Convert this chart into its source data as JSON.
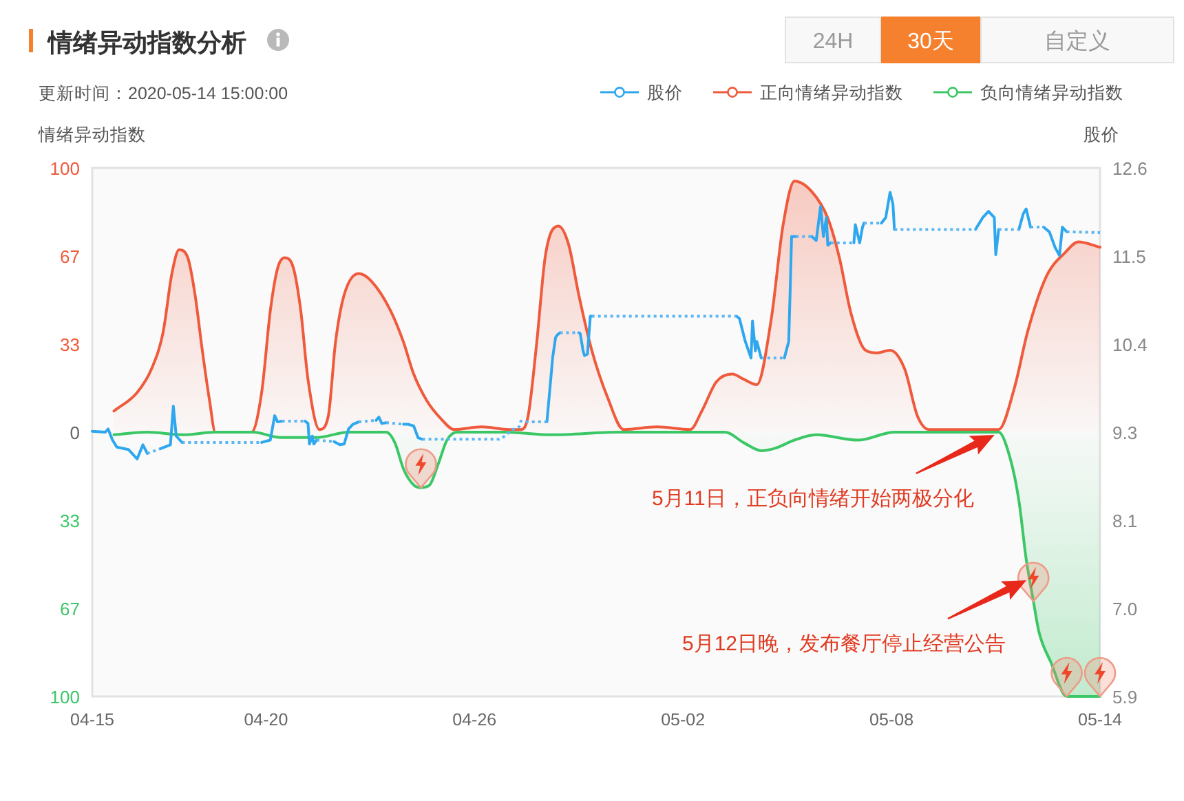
{
  "chart_data": {
    "type": "line",
    "title": "情绪异动指数分析",
    "subtitle": "更新时间：2020-05-14 15:00:00",
    "ylabel": "情绪异动指数",
    "y2label": "股价",
    "legend": "top right",
    "grid": false,
    "xlim": [
      "2020-04-15",
      "2020-05-14"
    ],
    "xticks": [
      {
        "value": "2020-04-15",
        "label": "04-15"
      },
      {
        "value": "2020-04-20",
        "label": "04-20"
      },
      {
        "value": "2020-04-26",
        "label": "04-26"
      },
      {
        "value": "2020-05-02",
        "label": "05-02"
      },
      {
        "value": "2020-05-08",
        "label": "05-08"
      },
      {
        "value": "2020-05-14",
        "label": "05-14"
      }
    ],
    "ylim": [
      -100,
      100
    ],
    "yticks": [
      {
        "value": -100,
        "label": "100"
      },
      {
        "value": -66.67,
        "label": "67"
      },
      {
        "value": -33.33,
        "label": "33"
      },
      0,
      {
        "value": 33.33,
        "label": "33"
      },
      {
        "value": 66.67,
        "label": "67"
      },
      100
    ],
    "y2lim": [
      5.9,
      12.6
    ],
    "y2ticks": [
      5.9,
      {
        "value": 7.02,
        "label": "7.0"
      },
      {
        "value": 8.13,
        "label": "8.1"
      },
      {
        "value": 9.25,
        "label": "9.3"
      },
      {
        "value": 10.37,
        "label": "10.4"
      },
      {
        "value": 11.48,
        "label": "11.5"
      },
      12.6
    ],
    "series": [
      {
        "name": "股价",
        "type": "line",
        "axis": "y2",
        "color": "#2ea7ef",
        "line_style": "solid",
        "x": [
          "2020-04-15T00:00",
          "2020-04-15T09:00",
          "2020-04-15T11:00",
          "2020-04-15T14:00",
          "2020-04-15T17:00",
          "2020-04-16T01:00",
          "2020-04-16T07:00",
          "2020-04-16T11:00",
          "2020-04-16T14:00",
          null,
          "2020-04-16T23:00",
          "2020-04-17T06:00",
          "2020-04-17T08:00",
          "2020-04-17T10:00",
          "2020-04-17T14:00",
          null,
          "2020-04-19T21:00",
          "2020-04-20T03:00",
          "2020-04-20T06:00",
          "2020-04-20T08:00",
          "2020-04-20T11:00",
          null,
          "2020-04-21T03:00",
          "2020-04-21T05:00",
          "2020-04-21T06:00",
          "2020-04-21T08:00",
          "2020-04-21T09:00",
          "2020-04-21T11:00",
          null,
          "2020-04-21T23:00",
          "2020-04-22T03:00",
          "2020-04-22T06:00",
          "2020-04-22T09:00",
          "2020-04-22T12:00",
          "2020-04-22T16:00",
          null,
          "2020-04-23T04:00",
          "2020-04-23T06:00",
          "2020-04-23T08:00",
          "2020-04-23T11:00",
          null,
          "2020-04-23T23:00",
          "2020-04-24T02:00",
          "2020-04-24T06:00",
          "2020-04-24T09:00",
          "2020-04-24T12:00",
          null,
          "2020-04-28T02:00",
          "2020-04-28T05:00",
          "2020-04-28T06:00",
          "2020-04-28T08:00",
          "2020-04-28T09:00",
          "2020-04-28T11:00",
          null,
          "2020-04-29T00:00",
          "2020-04-29T01:00",
          "2020-04-29T03:00",
          "2020-04-29T04:00",
          "2020-04-29T06:00",
          "2020-04-29T08:00",
          "2020-04-29T09:00",
          null,
          "2020-05-03T13:00",
          "2020-05-03T15:00",
          "2020-05-03T19:00",
          "2020-05-03T23:00",
          "2020-05-04T00:00",
          "2020-05-04T02:00",
          "2020-05-04T03:00",
          "2020-05-04T06:00",
          null,
          "2020-05-04T22:00",
          "2020-05-05T01:00",
          "2020-05-05T02:00",
          "2020-05-05T03:00",
          "2020-05-05T06:00",
          null,
          "2020-05-05T17:00",
          "2020-05-05T20:00",
          "2020-05-05T23:00",
          "2020-05-06T01:00",
          "2020-05-06T03:00",
          "2020-05-06T04:00",
          "2020-05-06T06:00",
          null,
          "2020-05-06T22:00",
          "2020-05-06T23:00",
          "2020-05-07T02:00",
          "2020-05-07T04:00",
          "2020-05-07T05:00",
          null,
          "2020-05-07T17:00",
          "2020-05-07T20:00",
          "2020-05-07T23:00",
          "2020-05-08T01:00",
          "2020-05-08T02:00",
          null,
          "2020-05-10T10:00",
          "2020-05-10T15:00",
          "2020-05-10T19:00",
          "2020-05-10T23:00",
          "2020-05-11T00:00",
          "2020-05-11T02:00",
          null,
          "2020-05-11T16:00",
          "2020-05-11T19:00",
          "2020-05-11T21:00",
          "2020-05-12T00:00",
          null,
          "2020-05-12T09:00",
          "2020-05-12T13:00",
          "2020-05-12T17:00",
          "2020-05-12T20:00",
          "2020-05-12T22:00",
          "2020-05-13T01:00"
        ],
        "values": [
          9.26,
          9.25,
          9.29,
          9.15,
          9.06,
          9.03,
          8.91,
          9.09,
          8.98,
          null,
          9.04,
          9.09,
          9.58,
          9.2,
          9.12,
          null,
          9.12,
          9.15,
          9.46,
          9.38,
          9.39,
          null,
          9.39,
          9.36,
          9.1,
          9.2,
          9.1,
          9.15,
          null,
          9.13,
          9.09,
          9.1,
          9.29,
          9.35,
          9.38,
          null,
          9.4,
          9.44,
          9.36,
          9.37,
          null,
          9.35,
          9.35,
          9.33,
          9.18,
          9.16,
          null,
          9.38,
          9.99,
          10.2,
          10.45,
          10.48,
          10.51,
          null,
          10.51,
          10.5,
          10.28,
          10.22,
          10.24,
          10.72,
          10.72,
          null,
          10.72,
          10.69,
          10.4,
          10.19,
          10.66,
          10.28,
          10.4,
          10.19,
          null,
          10.19,
          10.4,
          11.04,
          11.73,
          11.73,
          null,
          11.73,
          11.68,
          12.11,
          11.73,
          11.97,
          11.62,
          11.65,
          null,
          11.65,
          11.88,
          11.65,
          11.85,
          11.9,
          null,
          11.9,
          11.97,
          12.29,
          12.14,
          11.82,
          null,
          11.82,
          11.97,
          12.05,
          11.97,
          11.5,
          11.82,
          null,
          11.82,
          12.02,
          12.08,
          11.85,
          null,
          11.85,
          11.79,
          11.59,
          11.49,
          11.85,
          11.79
        ]
      },
      {
        "type": "line",
        "axis": "y2",
        "color": "#5ab6f2",
        "line_style": "dotted",
        "x": [
          "2020-04-16T14:00",
          "2020-04-16T23:00",
          null,
          "2020-04-17T14:00",
          "2020-04-19T21:00",
          null,
          "2020-04-20T11:00",
          "2020-04-21T03:00",
          null,
          "2020-04-21T11:00",
          "2020-04-21T23:00",
          null,
          "2020-04-22T16:00",
          "2020-04-23T04:00",
          null,
          "2020-04-23T11:00",
          "2020-04-23T23:00",
          null,
          "2020-04-24T12:00",
          "2020-04-26T17:00",
          "2020-04-26T21:00",
          "2020-04-27T02:00",
          "2020-04-27T07:00",
          "2020-04-27T08:00",
          "2020-04-27T12:00",
          "2020-04-28T02:00",
          null,
          "2020-04-28T11:00",
          "2020-04-29T00:00",
          null,
          "2020-04-29T09:00",
          "2020-05-03T13:00",
          null,
          "2020-05-04T06:00",
          "2020-05-04T22:00",
          null,
          "2020-05-05T06:00",
          "2020-05-05T17:00",
          null,
          "2020-05-06T06:00",
          "2020-05-06T22:00",
          null,
          "2020-05-07T05:00",
          "2020-05-07T17:00",
          null,
          "2020-05-08T02:00",
          "2020-05-10T10:00",
          null,
          "2020-05-11T02:00",
          "2020-05-11T16:00",
          null,
          "2020-05-12T00:00",
          "2020-05-12T09:00",
          null,
          "2020-05-13T01:00",
          "2020-05-14T00:00"
        ],
        "values": [
          8.98,
          9.04,
          null,
          9.12,
          9.12,
          null,
          9.39,
          9.39,
          null,
          9.15,
          9.13,
          null,
          9.38,
          9.4,
          null,
          9.37,
          9.35,
          null,
          9.16,
          9.16,
          9.2,
          9.28,
          9.32,
          9.39,
          9.38,
          9.38,
          null,
          10.51,
          10.51,
          null,
          10.72,
          10.72,
          null,
          10.19,
          10.19,
          null,
          11.73,
          11.73,
          null,
          11.65,
          11.65,
          null,
          11.9,
          11.9,
          null,
          11.82,
          11.82,
          null,
          11.82,
          11.82,
          null,
          11.85,
          11.85,
          null,
          11.79,
          11.78
        ]
      },
      {
        "name": "正向情绪异动指数",
        "type": "area",
        "color": "#ef5a3c",
        "x": [
          "2020-04-15T15:00",
          "2020-04-16T07:00",
          "2020-04-16T17:00",
          "2020-04-17T01:00",
          "2020-04-17T07:00",
          "2020-04-17T12:00",
          "2020-04-17T18:00",
          "2020-04-17T23:00",
          "2020-04-18T04:00",
          "2020-04-18T09:00",
          "2020-04-18T13:00",
          "2020-04-19T14:00",
          "2020-04-19T21:00",
          "2020-04-20T03:00",
          "2020-04-20T08:00",
          "2020-04-20T13:00",
          "2020-04-20T19:00",
          "2020-04-21T00:00",
          "2020-04-21T05:00",
          "2020-04-21T13:00",
          "2020-04-21T19:00",
          "2020-04-22T00:00",
          "2020-04-22T06:00",
          "2020-04-22T16:00",
          "2020-04-23T01:00",
          "2020-04-23T14:00",
          "2020-04-23T23:00",
          "2020-04-24T06:00",
          "2020-04-24T15:00",
          "2020-04-25T01:00",
          "2020-04-25T10:00",
          "2020-04-26T05:00",
          "2020-04-27T00:00",
          "2020-04-27T08:00",
          "2020-04-27T13:00",
          "2020-04-27T19:00",
          "2020-04-28T01:00",
          "2020-04-28T10:00",
          "2020-04-28T17:00",
          "2020-04-29T00:00",
          "2020-04-29T09:00",
          "2020-04-29T20:00",
          "2020-04-30T07:00",
          "2020-05-01T06:00",
          "2020-05-02T05:00",
          "2020-05-02T13:00",
          "2020-05-02T23:00",
          "2020-05-03T10:00",
          "2020-05-03T18:00",
          "2020-05-04T03:00",
          "2020-05-04T13:00",
          "2020-05-04T21:00",
          "2020-05-05T05:00",
          "2020-05-05T17:00",
          "2020-05-06T04:00",
          "2020-05-06T12:00",
          "2020-05-06T20:00",
          "2020-05-07T06:00",
          "2020-05-07T14:00",
          "2020-05-07T23:00",
          "2020-05-08T09:00",
          "2020-05-08T18:00",
          "2020-05-09T02:00",
          "2020-05-11T02:00",
          "2020-05-11T13:00",
          "2020-05-11T22:00",
          "2020-05-12T11:00",
          "2020-05-13T00:00",
          "2020-05-13T09:00",
          "2020-05-14T00:00"
        ],
        "values": [
          8,
          15,
          24,
          38,
          60,
          69,
          66,
          52,
          31,
          12,
          0,
          0,
          15,
          46,
          62,
          66,
          62,
          46,
          20,
          1,
          6,
          34,
          52,
          60,
          57,
          46,
          34,
          22,
          12,
          5,
          1,
          2,
          1,
          1,
          6,
          34,
          67,
          78,
          71,
          52,
          31,
          13,
          1,
          2,
          1,
          8,
          19,
          22,
          20,
          18,
          43,
          78,
          95,
          91,
          81,
          66,
          45,
          31,
          30,
          31,
          24,
          6,
          1,
          1,
          17,
          38,
          59,
          68,
          72,
          70
        ]
      },
      {
        "name": "负向情绪异动指数",
        "type": "area",
        "color": "#3cc767",
        "x": [
          "2020-04-15T15:00",
          "2020-04-16T14:00",
          "2020-04-17T15:00",
          "2020-04-18T13:00",
          "2020-04-19T15:00",
          "2020-04-20T10:00",
          "2020-04-21T11:00",
          "2020-04-22T09:00",
          "2020-04-23T11:00",
          "2020-04-23T17:00",
          "2020-04-23T23:00",
          "2020-04-24T06:00",
          "2020-04-24T11:00",
          "2020-04-24T17:00",
          "2020-04-24T23:00",
          "2020-04-25T05:00",
          "2020-04-25T12:00",
          "2020-04-26T21:00",
          "2020-04-28T05:00",
          "2020-04-30T04:00",
          "2020-05-03T05:00",
          "2020-05-03T18:00",
          "2020-05-04T06:00",
          "2020-05-04T16:00",
          "2020-05-05T05:00",
          "2020-05-05T20:00",
          "2020-05-07T01:00",
          "2020-05-08T02:00",
          "2020-05-11T02:00",
          "2020-05-11T10:00",
          "2020-05-11T16:00",
          "2020-05-11T21:00",
          "2020-05-12T02:00",
          "2020-05-12T06:00",
          "2020-05-12T14:00",
          "2020-05-13T01:00",
          "2020-05-14T00:00"
        ],
        "values": [
          -1,
          0,
          -1,
          0,
          0,
          -2,
          -2,
          0,
          0,
          -4,
          -14,
          -20,
          -21,
          -20,
          -12,
          -3,
          0,
          0,
          -1,
          0,
          0,
          -4,
          -7,
          -6,
          -3,
          -1,
          -3,
          0,
          0,
          -10,
          -26,
          -48,
          -64,
          -76,
          -87,
          -100,
          -100
        ]
      }
    ],
    "annotations": [
      "24H",
      "30天",
      "自定义",
      {
        "text": "5月11日，正负向情绪开始两极分化",
        "x": "2020-05-11T02:00",
        "y": 0
      },
      {
        "text": "5月12日晚，发布餐厅停止经营公告",
        "x": "2020-05-12T00:00",
        "y": -55
      }
    ]
  }
}
